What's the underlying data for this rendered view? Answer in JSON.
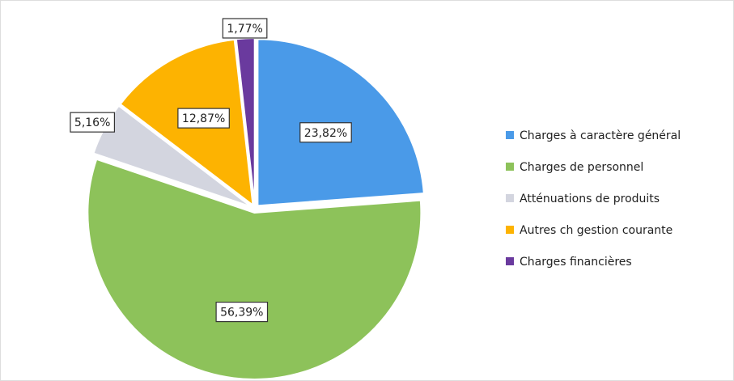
{
  "chart_data": {
    "type": "pie",
    "categories": [
      "Charges à caractère général",
      "Charges de personnel",
      "Atténuations de produits",
      "Autres ch gestion courante",
      "Charges financières"
    ],
    "values": [
      23.82,
      56.39,
      5.16,
      12.87,
      1.77
    ],
    "value_labels": [
      "23,82%",
      "56,39%",
      "5,16%",
      "12,87%",
      "1,77%"
    ],
    "colors": [
      "#4a9ae8",
      "#8dc25a",
      "#d3d5df",
      "#fdb301",
      "#6a3a9e"
    ],
    "legend": "right"
  }
}
